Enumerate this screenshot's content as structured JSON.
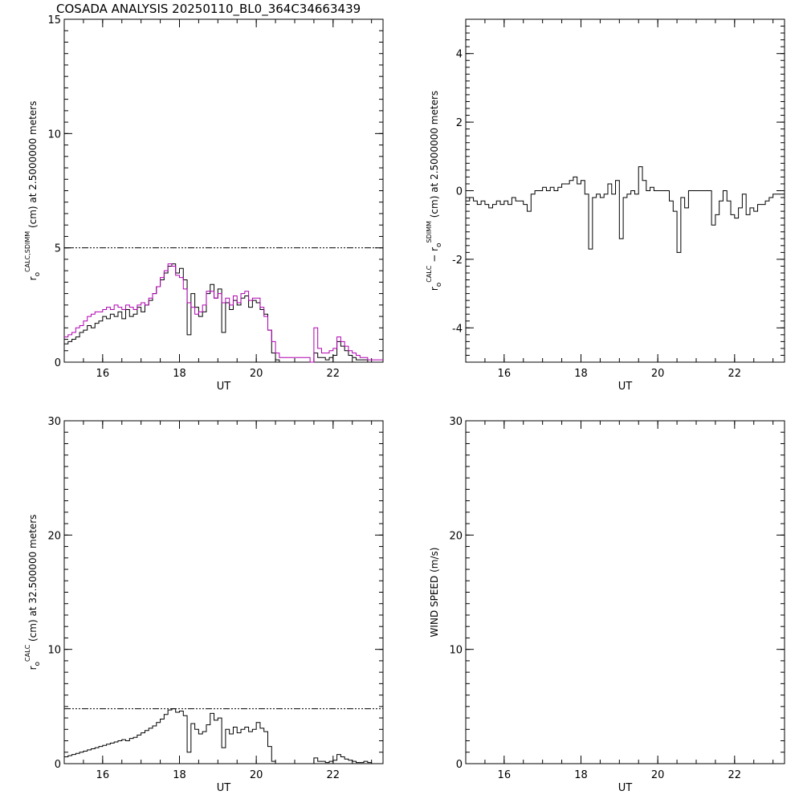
{
  "title": "COSADA ANALYSIS 20250110_BL0_364C34663439",
  "chart_data": [
    {
      "id": "p1",
      "type": "line",
      "xlabel": "UT",
      "ylabel": "r_o^CALC,SDIMM (cm) at 2.5000000 meters",
      "ylabel_parts": {
        "base": "r",
        "sub": "o",
        "sup": "CALC,SDIMM",
        "rest": "(cm)  at  2.5000000 meters"
      },
      "xlim": [
        15,
        23.3
      ],
      "ylim": [
        0,
        15
      ],
      "x_ticks": [
        16,
        18,
        20,
        22
      ],
      "y_ticks": [
        0,
        5,
        10,
        15
      ],
      "reference_line": 5,
      "series": [
        {
          "color": "#000000",
          "style": "step",
          "x": [
            15.0,
            15.1,
            15.2,
            15.3,
            15.4,
            15.5,
            15.6,
            15.7,
            15.8,
            15.9,
            16.0,
            16.1,
            16.2,
            16.3,
            16.4,
            16.5,
            16.6,
            16.7,
            16.8,
            16.9,
            17.0,
            17.1,
            17.2,
            17.3,
            17.4,
            17.5,
            17.6,
            17.7,
            17.8,
            17.9,
            18.0,
            18.1,
            18.2,
            18.3,
            18.4,
            18.5,
            18.6,
            18.7,
            18.8,
            18.9,
            19.0,
            19.1,
            19.2,
            19.3,
            19.4,
            19.5,
            19.6,
            19.7,
            19.8,
            19.9,
            20.0,
            20.1,
            20.2,
            20.3,
            20.4,
            20.5,
            20.6,
            21.4,
            21.5,
            21.6,
            21.7,
            21.8,
            21.9,
            22.0,
            22.1,
            22.2,
            22.3,
            22.4,
            22.5,
            22.6,
            22.7,
            22.8,
            22.9,
            23.0,
            23.3
          ],
          "y": [
            0.8,
            0.9,
            1.0,
            1.1,
            1.3,
            1.4,
            1.6,
            1.5,
            1.7,
            1.8,
            2.0,
            1.9,
            2.1,
            2.0,
            2.2,
            1.9,
            2.3,
            2.0,
            2.1,
            2.4,
            2.2,
            2.5,
            2.7,
            3.0,
            3.3,
            3.6,
            3.9,
            4.2,
            4.3,
            3.9,
            4.1,
            3.6,
            1.2,
            3.0,
            2.4,
            2.0,
            2.2,
            3.0,
            3.4,
            2.8,
            3.2,
            1.3,
            2.6,
            2.3,
            2.7,
            2.5,
            2.8,
            2.9,
            2.4,
            2.7,
            2.6,
            2.3,
            2.1,
            1.4,
            0.4,
            0.1,
            0.0,
            0.0,
            0.4,
            0.2,
            0.2,
            0.1,
            0.2,
            0.3,
            0.9,
            0.7,
            0.5,
            0.3,
            0.2,
            0.1,
            0.1,
            0.1,
            0.0,
            0.0,
            0.0
          ]
        },
        {
          "color": "#b000b0",
          "style": "step",
          "x": [
            15.0,
            15.1,
            15.2,
            15.3,
            15.4,
            15.5,
            15.6,
            15.7,
            15.8,
            15.9,
            16.0,
            16.1,
            16.2,
            16.3,
            16.4,
            16.5,
            16.6,
            16.7,
            16.8,
            16.9,
            17.0,
            17.1,
            17.2,
            17.3,
            17.4,
            17.5,
            17.6,
            17.7,
            17.8,
            17.9,
            18.0,
            18.1,
            18.2,
            18.3,
            18.4,
            18.5,
            18.6,
            18.7,
            18.8,
            18.9,
            19.0,
            19.1,
            19.2,
            19.3,
            19.4,
            19.5,
            19.6,
            19.7,
            19.8,
            19.9,
            20.0,
            20.1,
            20.2,
            20.3,
            20.4,
            20.5,
            20.6,
            21.4,
            21.5,
            21.6,
            21.7,
            21.8,
            21.9,
            22.0,
            22.1,
            22.2,
            22.3,
            22.4,
            22.5,
            22.6,
            22.7,
            22.8,
            22.9,
            23.0,
            23.3
          ],
          "y": [
            1.1,
            1.2,
            1.3,
            1.5,
            1.6,
            1.8,
            2.0,
            2.1,
            2.2,
            2.2,
            2.3,
            2.4,
            2.3,
            2.5,
            2.4,
            2.3,
            2.5,
            2.4,
            2.3,
            2.5,
            2.6,
            2.5,
            2.8,
            3.0,
            3.3,
            3.7,
            4.0,
            4.3,
            4.2,
            3.8,
            3.7,
            3.2,
            2.6,
            2.4,
            2.1,
            2.2,
            2.5,
            3.1,
            3.1,
            2.8,
            3.0,
            2.6,
            2.8,
            2.5,
            2.9,
            2.6,
            3.0,
            3.1,
            2.7,
            2.8,
            2.8,
            2.4,
            2.0,
            1.4,
            0.9,
            0.4,
            0.2,
            0.0,
            1.5,
            0.6,
            0.4,
            0.4,
            0.5,
            0.6,
            1.1,
            0.9,
            0.7,
            0.5,
            0.4,
            0.3,
            0.2,
            0.2,
            0.1,
            0.1,
            0.1
          ]
        }
      ]
    },
    {
      "id": "p2",
      "type": "line",
      "xlabel": "UT",
      "ylabel": "r_o^CALC - r_o^SDIMM (cm) at 2.5000000 meters",
      "ylabel_parts": {
        "base": "r",
        "sub": "o",
        "sup": "CALC",
        "mid": " − r",
        "sub2": "o",
        "sup2": "SDIMM",
        "rest": " (cm) at 2.5000000 meters"
      },
      "xlim": [
        15,
        23.3
      ],
      "ylim": [
        -5,
        5
      ],
      "x_ticks": [
        16,
        18,
        20,
        22
      ],
      "y_ticks": [
        -4,
        -2,
        0,
        2,
        4
      ],
      "series": [
        {
          "color": "#000000",
          "style": "step",
          "x": [
            15.0,
            15.1,
            15.2,
            15.3,
            15.4,
            15.5,
            15.6,
            15.7,
            15.8,
            15.9,
            16.0,
            16.1,
            16.2,
            16.3,
            16.4,
            16.5,
            16.6,
            16.7,
            16.8,
            16.9,
            17.0,
            17.1,
            17.2,
            17.3,
            17.4,
            17.5,
            17.6,
            17.7,
            17.8,
            17.9,
            18.0,
            18.1,
            18.2,
            18.3,
            18.4,
            18.5,
            18.6,
            18.7,
            18.8,
            18.9,
            19.0,
            19.1,
            19.2,
            19.3,
            19.4,
            19.5,
            19.6,
            19.7,
            19.8,
            19.9,
            20.0,
            20.1,
            20.2,
            20.3,
            20.4,
            20.5,
            20.6,
            20.7,
            20.8,
            21.3,
            21.4,
            21.5,
            21.6,
            21.7,
            21.8,
            21.9,
            22.0,
            22.1,
            22.2,
            22.3,
            22.4,
            22.5,
            22.6,
            22.7,
            22.8,
            22.9,
            23.0,
            23.1,
            23.3
          ],
          "y": [
            -0.3,
            -0.2,
            -0.3,
            -0.4,
            -0.3,
            -0.4,
            -0.5,
            -0.4,
            -0.3,
            -0.4,
            -0.3,
            -0.4,
            -0.2,
            -0.3,
            -0.3,
            -0.4,
            -0.6,
            -0.1,
            0.0,
            0.0,
            0.1,
            0.0,
            0.1,
            0.0,
            0.1,
            0.2,
            0.2,
            0.3,
            0.4,
            0.2,
            0.3,
            -0.1,
            -1.7,
            -0.2,
            -0.1,
            -0.2,
            -0.1,
            0.2,
            -0.1,
            0.3,
            -1.4,
            -0.2,
            -0.1,
            0.0,
            -0.1,
            0.7,
            0.3,
            0.0,
            0.1,
            0.0,
            0.0,
            0.0,
            0.0,
            -0.3,
            -0.6,
            -1.8,
            -0.2,
            -0.5,
            0.0,
            0.0,
            -1.0,
            -0.7,
            -0.3,
            0.0,
            -0.3,
            -0.7,
            -0.8,
            -0.5,
            -0.1,
            -0.7,
            -0.5,
            -0.6,
            -0.4,
            -0.4,
            -0.3,
            -0.2,
            -0.1,
            -0.1,
            -0.1
          ]
        }
      ]
    },
    {
      "id": "p3",
      "type": "line",
      "xlabel": "UT",
      "ylabel": "r_o^CALC (cm) at 32.500000 meters",
      "ylabel_parts": {
        "base": "r",
        "sub": "o",
        "sup": "CALC",
        "rest": "(cm) at 32.500000 meters"
      },
      "xlim": [
        15,
        23.3
      ],
      "ylim": [
        0,
        30
      ],
      "x_ticks": [
        16,
        18,
        20,
        22
      ],
      "y_ticks": [
        0,
        10,
        20,
        30
      ],
      "reference_line": 4.8,
      "series": [
        {
          "color": "#000000",
          "style": "step",
          "x": [
            15.0,
            15.1,
            15.2,
            15.3,
            15.4,
            15.5,
            15.6,
            15.7,
            15.8,
            15.9,
            16.0,
            16.1,
            16.2,
            16.3,
            16.4,
            16.5,
            16.6,
            16.7,
            16.8,
            16.9,
            17.0,
            17.1,
            17.2,
            17.3,
            17.4,
            17.5,
            17.6,
            17.7,
            17.8,
            17.9,
            18.0,
            18.1,
            18.2,
            18.3,
            18.4,
            18.5,
            18.6,
            18.7,
            18.8,
            18.9,
            19.0,
            19.1,
            19.2,
            19.3,
            19.4,
            19.5,
            19.6,
            19.7,
            19.8,
            19.9,
            20.0,
            20.1,
            20.2,
            20.3,
            20.4,
            20.5,
            20.6,
            21.4,
            21.5,
            21.6,
            21.7,
            21.8,
            21.9,
            22.0,
            22.1,
            22.2,
            22.3,
            22.4,
            22.5,
            22.6,
            22.7,
            22.8,
            22.9,
            23.0,
            23.3
          ],
          "y": [
            0.6,
            0.7,
            0.8,
            0.9,
            1.0,
            1.1,
            1.2,
            1.3,
            1.4,
            1.5,
            1.6,
            1.7,
            1.8,
            1.9,
            2.0,
            2.1,
            2.0,
            2.2,
            2.3,
            2.5,
            2.7,
            2.9,
            3.1,
            3.3,
            3.6,
            3.9,
            4.3,
            4.7,
            4.8,
            4.5,
            4.6,
            4.2,
            1.0,
            3.5,
            3.0,
            2.6,
            2.8,
            3.4,
            4.4,
            3.8,
            4.0,
            1.4,
            3.0,
            2.6,
            3.2,
            2.7,
            3.0,
            3.2,
            2.8,
            3.0,
            3.6,
            3.1,
            2.8,
            1.5,
            0.2,
            0.0,
            0.0,
            0.0,
            0.5,
            0.2,
            0.2,
            0.1,
            0.2,
            0.3,
            0.8,
            0.6,
            0.4,
            0.3,
            0.2,
            0.1,
            0.1,
            0.2,
            0.1,
            0.0,
            0.0
          ]
        }
      ]
    },
    {
      "id": "p4",
      "type": "line",
      "xlabel": "UT",
      "ylabel": "WIND SPEED (m/s)",
      "ylabel_parts": {
        "base": "",
        "sub": "",
        "sup": "",
        "rest": "WIND SPEED (m/s)"
      },
      "xlim": [
        15,
        23.3
      ],
      "ylim": [
        0,
        30
      ],
      "x_ticks": [
        16,
        18,
        20,
        22
      ],
      "y_ticks": [
        0,
        10,
        20,
        30
      ],
      "series": []
    }
  ]
}
